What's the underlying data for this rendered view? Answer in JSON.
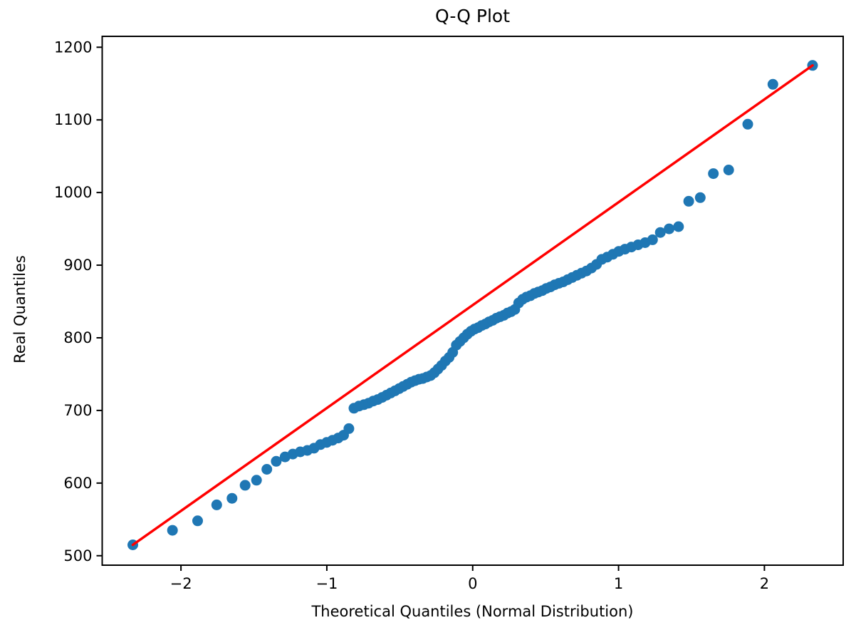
{
  "figure": {
    "title": "Q-Q Plot",
    "xlabel": "Theoretical Quantiles (Normal Distribution)",
    "ylabel": "Real Quantiles"
  },
  "chart_data": {
    "type": "scatter",
    "title": "Q-Q Plot",
    "xlabel": "Theoretical Quantiles (Normal Distribution)",
    "ylabel": "Real Quantiles",
    "xlim": [
      -2.54,
      2.54
    ],
    "ylim": [
      487,
      1215
    ],
    "xticks": [
      -2,
      -1,
      0,
      1,
      2
    ],
    "yticks": [
      500,
      600,
      700,
      800,
      900,
      1000,
      1100,
      1200
    ],
    "grid": false,
    "legend": "none",
    "marker_color": "#1f77b4",
    "marker_radius": 7.5,
    "line_color": "#ff0000",
    "line_width": 3.5,
    "series": [
      {
        "name": "sample-quantiles",
        "kind": "scatter",
        "points": [
          [
            -2.33,
            515
          ],
          [
            -2.058,
            535
          ],
          [
            -1.886,
            548
          ],
          [
            -1.755,
            570
          ],
          [
            -1.65,
            579
          ],
          [
            -1.56,
            597
          ],
          [
            -1.482,
            604
          ],
          [
            -1.411,
            619
          ],
          [
            -1.347,
            630
          ],
          [
            -1.286,
            636
          ],
          [
            -1.233,
            640
          ],
          [
            -1.182,
            643
          ],
          [
            -1.134,
            645
          ],
          [
            -1.088,
            648
          ],
          [
            -1.044,
            653
          ],
          [
            -1.001,
            656
          ],
          [
            -0.961,
            659
          ],
          [
            -0.922,
            662
          ],
          [
            -0.885,
            666
          ],
          [
            -0.849,
            675
          ],
          [
            -0.814,
            703
          ],
          [
            -0.78,
            706
          ],
          [
            -0.746,
            708
          ],
          [
            -0.714,
            710
          ],
          [
            -0.682,
            713
          ],
          [
            -0.651,
            715
          ],
          [
            -0.621,
            718
          ],
          [
            -0.591,
            721
          ],
          [
            -0.562,
            724
          ],
          [
            -0.533,
            727
          ],
          [
            -0.504,
            730
          ],
          [
            -0.477,
            733
          ],
          [
            -0.449,
            736
          ],
          [
            -0.422,
            739
          ],
          [
            -0.395,
            741
          ],
          [
            -0.368,
            743
          ],
          [
            -0.342,
            744
          ],
          [
            -0.315,
            746
          ],
          [
            -0.289,
            748
          ],
          [
            -0.263,
            752
          ],
          [
            -0.238,
            757
          ],
          [
            -0.213,
            762
          ],
          [
            -0.187,
            768
          ],
          [
            -0.162,
            773
          ],
          [
            -0.137,
            780
          ],
          [
            -0.112,
            790
          ],
          [
            -0.087,
            795
          ],
          [
            -0.062,
            800
          ],
          [
            -0.037,
            805
          ],
          [
            -0.012,
            809
          ],
          [
            0.012,
            812
          ],
          [
            0.037,
            814
          ],
          [
            0.062,
            817
          ],
          [
            0.087,
            819
          ],
          [
            0.112,
            822
          ],
          [
            0.137,
            824
          ],
          [
            0.162,
            827
          ],
          [
            0.187,
            829
          ],
          [
            0.213,
            831
          ],
          [
            0.238,
            834
          ],
          [
            0.263,
            836
          ],
          [
            0.289,
            839
          ],
          [
            0.315,
            848
          ],
          [
            0.342,
            853
          ],
          [
            0.368,
            856
          ],
          [
            0.395,
            858
          ],
          [
            0.422,
            861
          ],
          [
            0.449,
            863
          ],
          [
            0.477,
            865
          ],
          [
            0.504,
            868
          ],
          [
            0.533,
            870
          ],
          [
            0.562,
            873
          ],
          [
            0.591,
            875
          ],
          [
            0.621,
            877
          ],
          [
            0.651,
            880
          ],
          [
            0.682,
            883
          ],
          [
            0.714,
            886
          ],
          [
            0.746,
            889
          ],
          [
            0.78,
            892
          ],
          [
            0.814,
            896
          ],
          [
            0.849,
            901
          ],
          [
            0.885,
            908
          ],
          [
            0.922,
            911
          ],
          [
            0.961,
            915
          ],
          [
            1.001,
            919
          ],
          [
            1.044,
            922
          ],
          [
            1.088,
            925
          ],
          [
            1.134,
            928
          ],
          [
            1.182,
            931
          ],
          [
            1.233,
            935
          ],
          [
            1.286,
            945
          ],
          [
            1.347,
            950
          ],
          [
            1.411,
            953
          ],
          [
            1.481,
            988
          ],
          [
            1.56,
            993
          ],
          [
            1.65,
            1026
          ],
          [
            1.755,
            1031
          ],
          [
            1.886,
            1094
          ],
          [
            2.058,
            1149
          ],
          [
            2.33,
            1175
          ]
        ]
      },
      {
        "name": "reference-line",
        "kind": "line",
        "points": [
          [
            -2.33,
            515
          ],
          [
            2.33,
            1175
          ]
        ]
      }
    ]
  }
}
